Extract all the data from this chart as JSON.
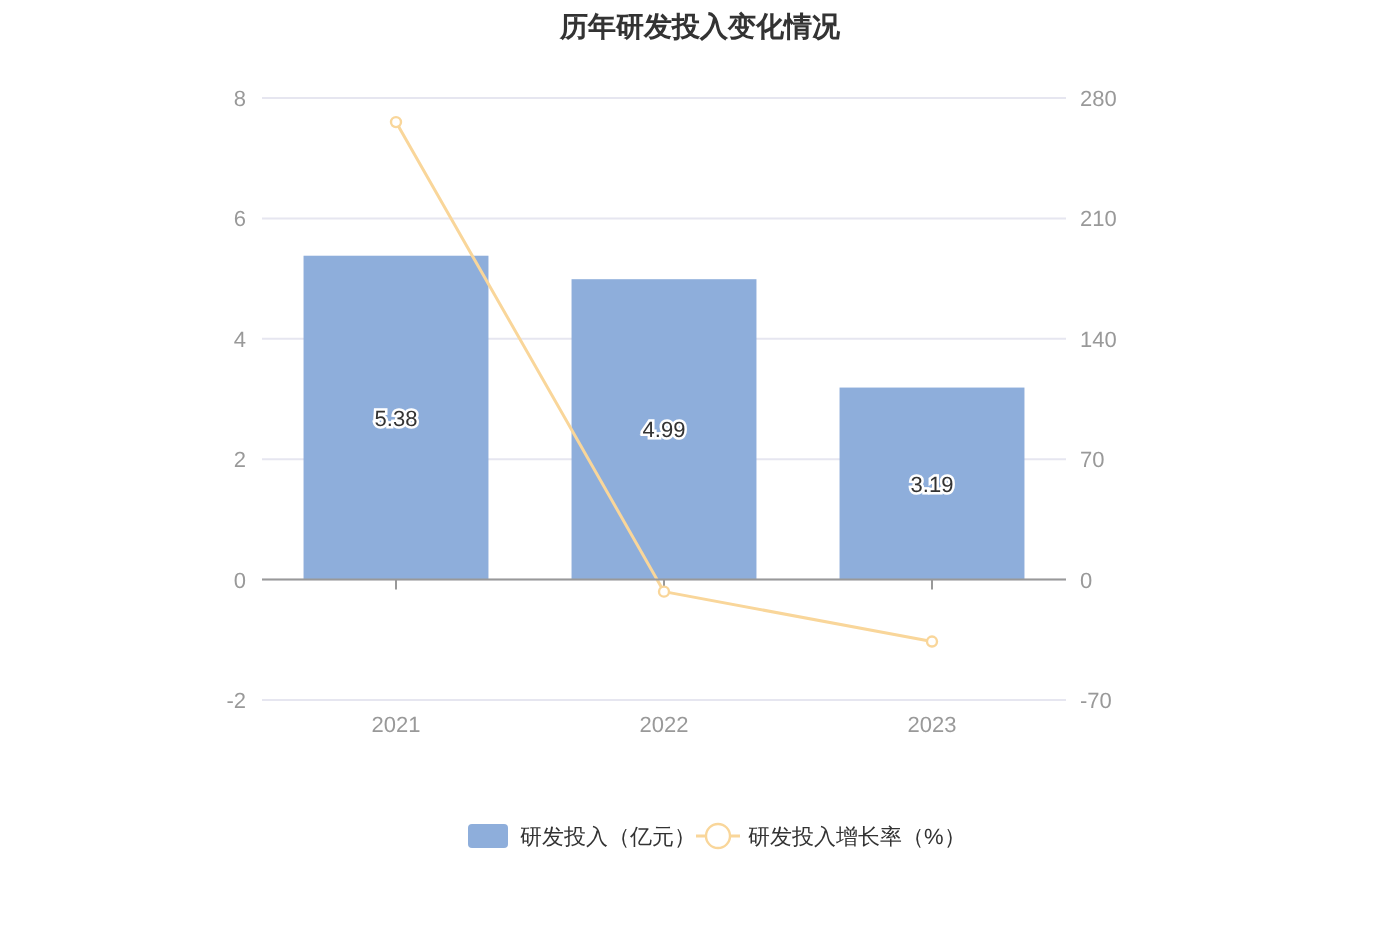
{
  "chart_data": {
    "type": "bar",
    "title": "历年研发投入变化情况",
    "categories": [
      "2021",
      "2022",
      "2023"
    ],
    "series": [
      {
        "name": "研发投入（亿元）",
        "color": "#8eaedb",
        "values": [
          5.38,
          4.99,
          3.19
        ],
        "value_labels": [
          "5.38",
          "4.99",
          "3.19"
        ]
      },
      {
        "name": "研发投入增长率（%）",
        "type": "line",
        "axis": "y2",
        "color": "#f9d69a",
        "marker": "circle",
        "values": [
          266,
          -7,
          -36
        ]
      }
    ],
    "ylim": [
      -2,
      8
    ],
    "yticks": [
      -2,
      0,
      2,
      4,
      6,
      8
    ],
    "y2lim": [
      -70,
      280
    ],
    "y2ticks": [
      -70,
      0,
      70,
      140,
      210,
      280
    ],
    "grid": "y",
    "legend": "bottom"
  }
}
